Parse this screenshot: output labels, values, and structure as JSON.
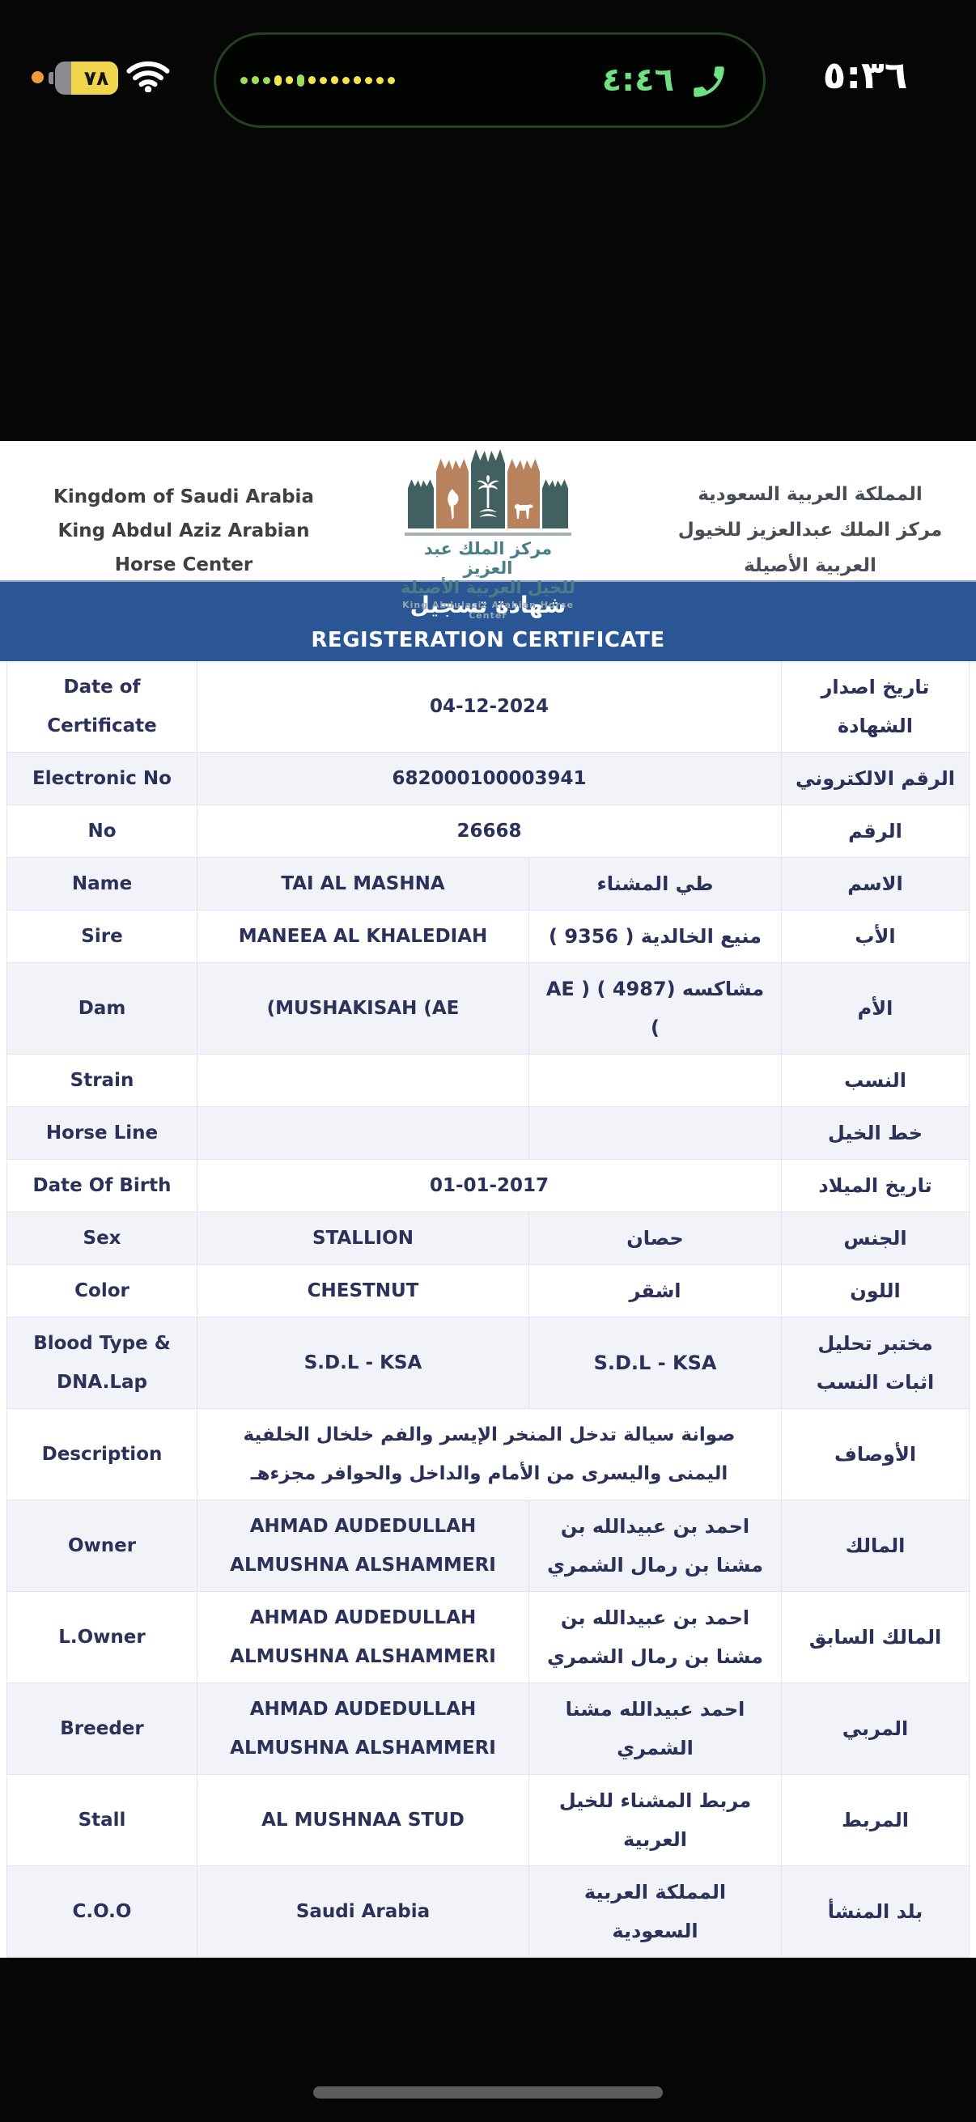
{
  "status_bar": {
    "time": "٥:٣٦",
    "battery_percent": "٧٨",
    "call": {
      "duration": "٤:٤٦"
    },
    "colors": {
      "call_green": "#6fe083",
      "battery_yellow": "#f1d64d",
      "mic_dot_orange": "#f19b38",
      "waveform_yellow": "#f3e44c",
      "waveform_green": "#9ddd5a"
    },
    "waveform_dot_count": 14
  },
  "header": {
    "en_line1": "Kingdom of Saudi Arabia",
    "en_line2": "King Abdul Aziz Arabian Horse Center",
    "ar_line1": "المملكة العربية السعودية",
    "ar_line2": "مركز الملك عبدالعزيز للخيول العربية الأصيلة",
    "logo": {
      "ar_line1": "مركز الملك عبد العزيز",
      "ar_line2": "للخيل العربية الأصيلة",
      "en_caption": "King Abdulaziz Arabian Horse Center",
      "teal": "#41605f",
      "tan": "#b8835c"
    }
  },
  "title_bar": {
    "ar": "شهادة تسجيل",
    "en": "REGISTERATION CERTIFICATE",
    "bg": "#2b5696"
  },
  "table": {
    "rows": [
      {
        "label_en": "Date of Certificate",
        "value": "04-12-2024",
        "value_dir": "ltr",
        "label_ar": "تاريخ اصدار الشهادة"
      },
      {
        "label_en": "Electronic No",
        "value": "682000100003941",
        "value_dir": "ltr",
        "label_ar": "الرقم الالكتروني"
      },
      {
        "label_en": "No",
        "value": "26668",
        "value_dir": "ltr",
        "label_ar": "الرقم"
      },
      {
        "label_en": "Name",
        "value_en": "TAI AL MASHNA",
        "value_ar": "طي المشناء",
        "label_ar": "الاسم"
      },
      {
        "label_en": "Sire",
        "value_en": "MANEEA AL KHALEDIAH",
        "value_ar": "منيع الخالدية ( 9356 )",
        "label_ar": "الأب"
      },
      {
        "label_en": "Dam",
        "value_en": "(MUSHAKISAH (AE",
        "value_ar": "مشاكسه (4987 ) ( AE )",
        "label_ar": "الأم"
      },
      {
        "label_en": "Strain",
        "value_en": "",
        "value_ar": "",
        "label_ar": "النسب"
      },
      {
        "label_en": "Horse Line",
        "value_en": "",
        "value_ar": "",
        "label_ar": "خط الخيل"
      },
      {
        "label_en": "Date Of Birth",
        "value": "01-01-2017",
        "value_dir": "ltr",
        "label_ar": "تاريخ الميلاد"
      },
      {
        "label_en": "Sex",
        "value_en": "STALLION",
        "value_ar": "حصان",
        "label_ar": "الجنس"
      },
      {
        "label_en": "Color",
        "value_en": "CHESTNUT",
        "value_ar": "اشقر",
        "label_ar": "اللون"
      },
      {
        "label_en": "Blood Type & DNA.Lap",
        "value_en": "S.D.L - KSA",
        "value_ar": "S.D.L - KSA",
        "label_ar": "مختبر تحليل اثبات النسب"
      },
      {
        "label_en": "Description",
        "value": "صوانة سيالة تدخل المنخر الإيسر والفم خلخال الخلفية اليمنى واليسرى من الأمام والداخل والحوافر مجزءهـ",
        "value_dir": "rtl",
        "label_ar": "الأوصاف"
      },
      {
        "label_en": "Owner",
        "value_en": "AHMAD AUDEDULLAH ALMUSHNA ALSHAMMERI",
        "value_ar": "احمد بن عبيدالله بن مشنا بن رمال الشمري",
        "label_ar": "المالك"
      },
      {
        "label_en": "L.Owner",
        "value_en": "AHMAD AUDEDULLAH ALMUSHNA ALSHAMMERI",
        "value_ar": "احمد بن عبيدالله بن مشنا بن رمال الشمري",
        "label_ar": "المالك السابق"
      },
      {
        "label_en": "Breeder",
        "value_en": "AHMAD AUDEDULLAH ALMUSHNA ALSHAMMERI",
        "value_ar": "احمد عبيدالله مشنا الشمري",
        "label_ar": "المربي"
      },
      {
        "label_en": "Stall",
        "value_en": "AL MUSHNAA STUD",
        "value_ar": "مربط المشناء للخيل العربية",
        "label_ar": "المربط"
      },
      {
        "label_en": "C.O.O",
        "value_en": "Saudi Arabia",
        "value_ar": "المملكة العربية السعودية",
        "label_ar": "بلد المنشأ"
      }
    ],
    "tall_rows": [
      "Description",
      "Owner",
      "L.Owner",
      "Breeder"
    ]
  }
}
